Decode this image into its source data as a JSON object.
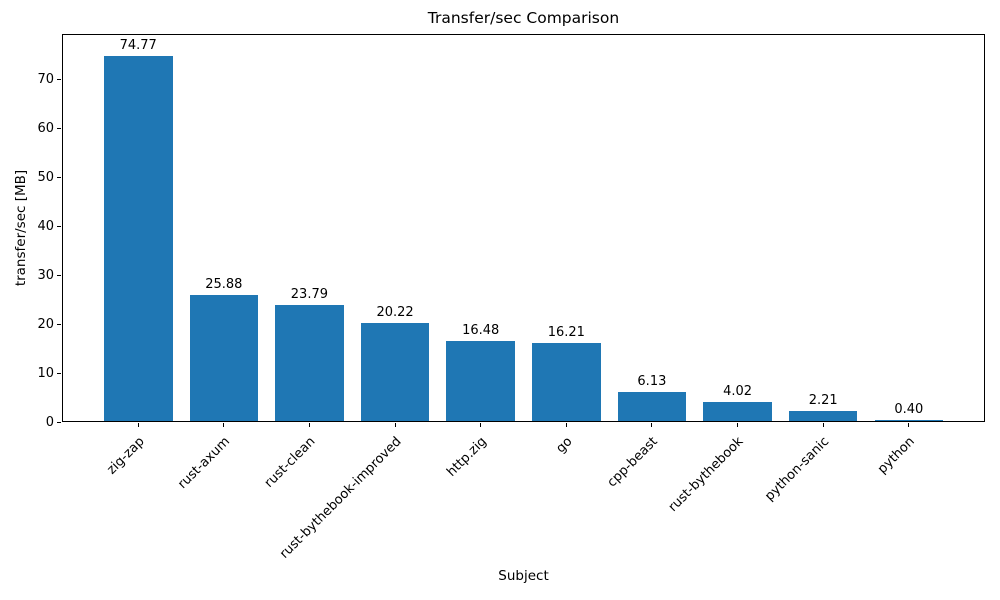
{
  "chart_data": {
    "type": "bar",
    "title": "Transfer/sec Comparison",
    "xlabel": "Subject",
    "ylabel": "transfer/sec [MB]",
    "categories": [
      "zig-zap",
      "rust-axum",
      "rust-clean",
      "rust-bythebook-improved",
      "http.zig",
      "go",
      "cpp-beast",
      "rust-bythebook",
      "python-sanic",
      "python"
    ],
    "values": [
      74.77,
      25.88,
      23.79,
      20.22,
      16.48,
      16.21,
      6.13,
      4.02,
      2.21,
      0.4
    ],
    "value_labels": [
      "74.77",
      "25.88",
      "23.79",
      "20.22",
      "16.48",
      "16.21",
      "6.13",
      "4.02",
      "2.21",
      "0.40"
    ],
    "yticks": [
      0,
      10,
      20,
      30,
      40,
      50,
      60,
      70
    ],
    "ylim": [
      0,
      79.2
    ],
    "bar_color": "#1f77b4",
    "text_color": "#000000",
    "grid": false,
    "legend": "none",
    "x_tick_rotation_deg": 45
  }
}
